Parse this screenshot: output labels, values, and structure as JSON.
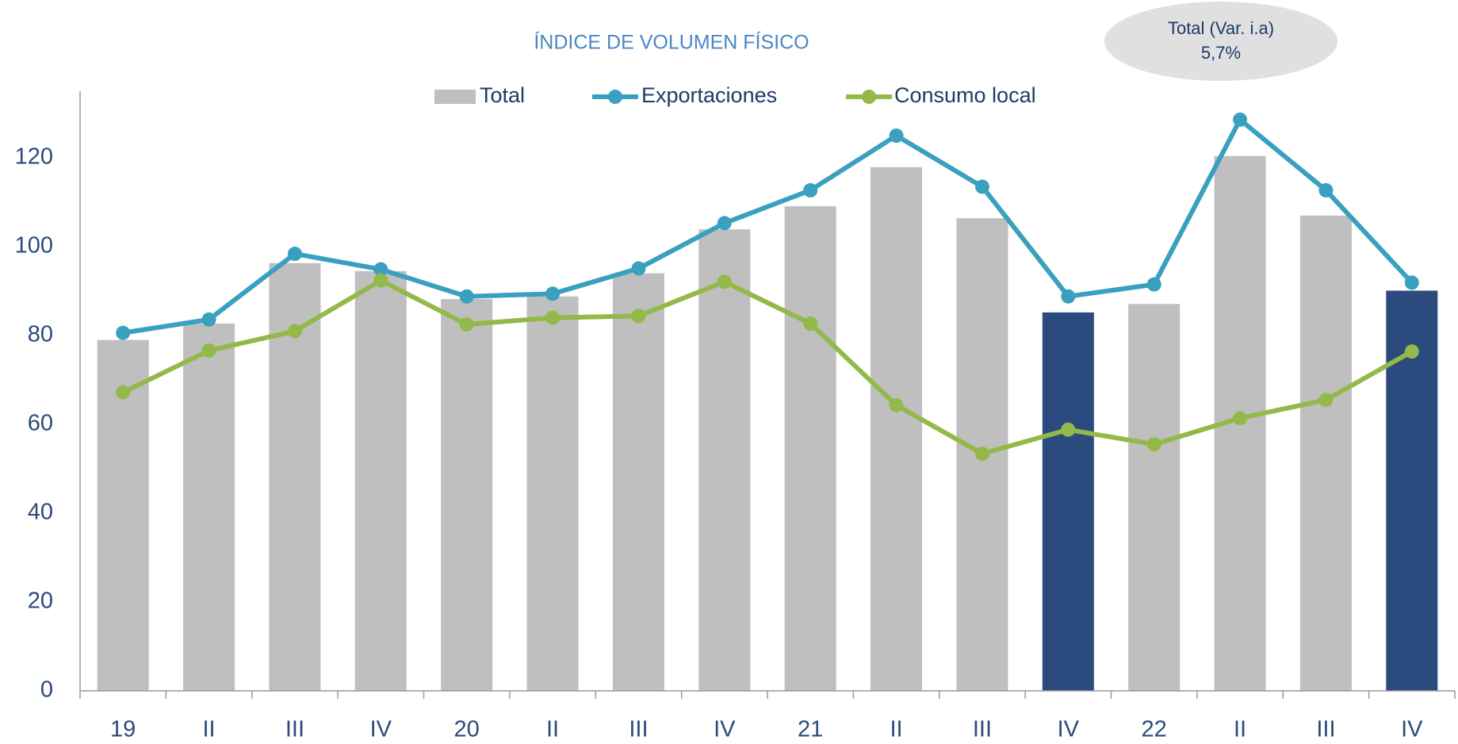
{
  "chart_data": {
    "type": "bar_line",
    "title": "ÍNDICE DE VOLUMEN FÍSICO",
    "annotation": [
      "Total (Var. i.a)",
      "5,7%"
    ],
    "categories": [
      "19",
      "II",
      "III",
      "IV",
      "20",
      "II",
      "III",
      "IV",
      "21",
      "II",
      "III",
      "IV",
      "22",
      "II",
      "III",
      "IV"
    ],
    "series": [
      {
        "name": "Total",
        "type": "bar",
        "color": "#bfbfbf",
        "colors": [
          "#bfbfbf",
          "#bfbfbf",
          "#bfbfbf",
          "#bfbfbf",
          "#bfbfbf",
          "#bfbfbf",
          "#bfbfbf",
          "#bfbfbf",
          "#bfbfbf",
          "#bfbfbf",
          "#bfbfbf",
          "#2b4b7e",
          "#bfbfbf",
          "#bfbfbf",
          "#bfbfbf",
          "#2b4b7e"
        ],
        "values": [
          79.0,
          82.7,
          96.3,
          94.5,
          88.2,
          88.8,
          94.0,
          103.9,
          109.1,
          117.9,
          106.4,
          85.2,
          87.1,
          120.4,
          107.0,
          90.1
        ]
      },
      {
        "name": "Exportaciones",
        "type": "line",
        "color": "#3aa0c0",
        "values": [
          80.6,
          83.6,
          98.4,
          94.9,
          88.8,
          89.4,
          95.1,
          105.3,
          112.7,
          125.0,
          113.5,
          88.8,
          91.5,
          128.6,
          112.7,
          91.9
        ]
      },
      {
        "name": "Consumo local",
        "type": "line",
        "color": "#93b94a",
        "values": [
          67.2,
          76.6,
          81.0,
          92.4,
          82.5,
          84.0,
          84.4,
          92.1,
          82.7,
          64.3,
          53.4,
          58.8,
          55.5,
          61.4,
          65.5,
          76.4
        ]
      }
    ],
    "ylim": [
      0,
      135
    ],
    "yticks": [
      0,
      20,
      40,
      60,
      80,
      100,
      120
    ],
    "grid": false,
    "legend": "top"
  }
}
